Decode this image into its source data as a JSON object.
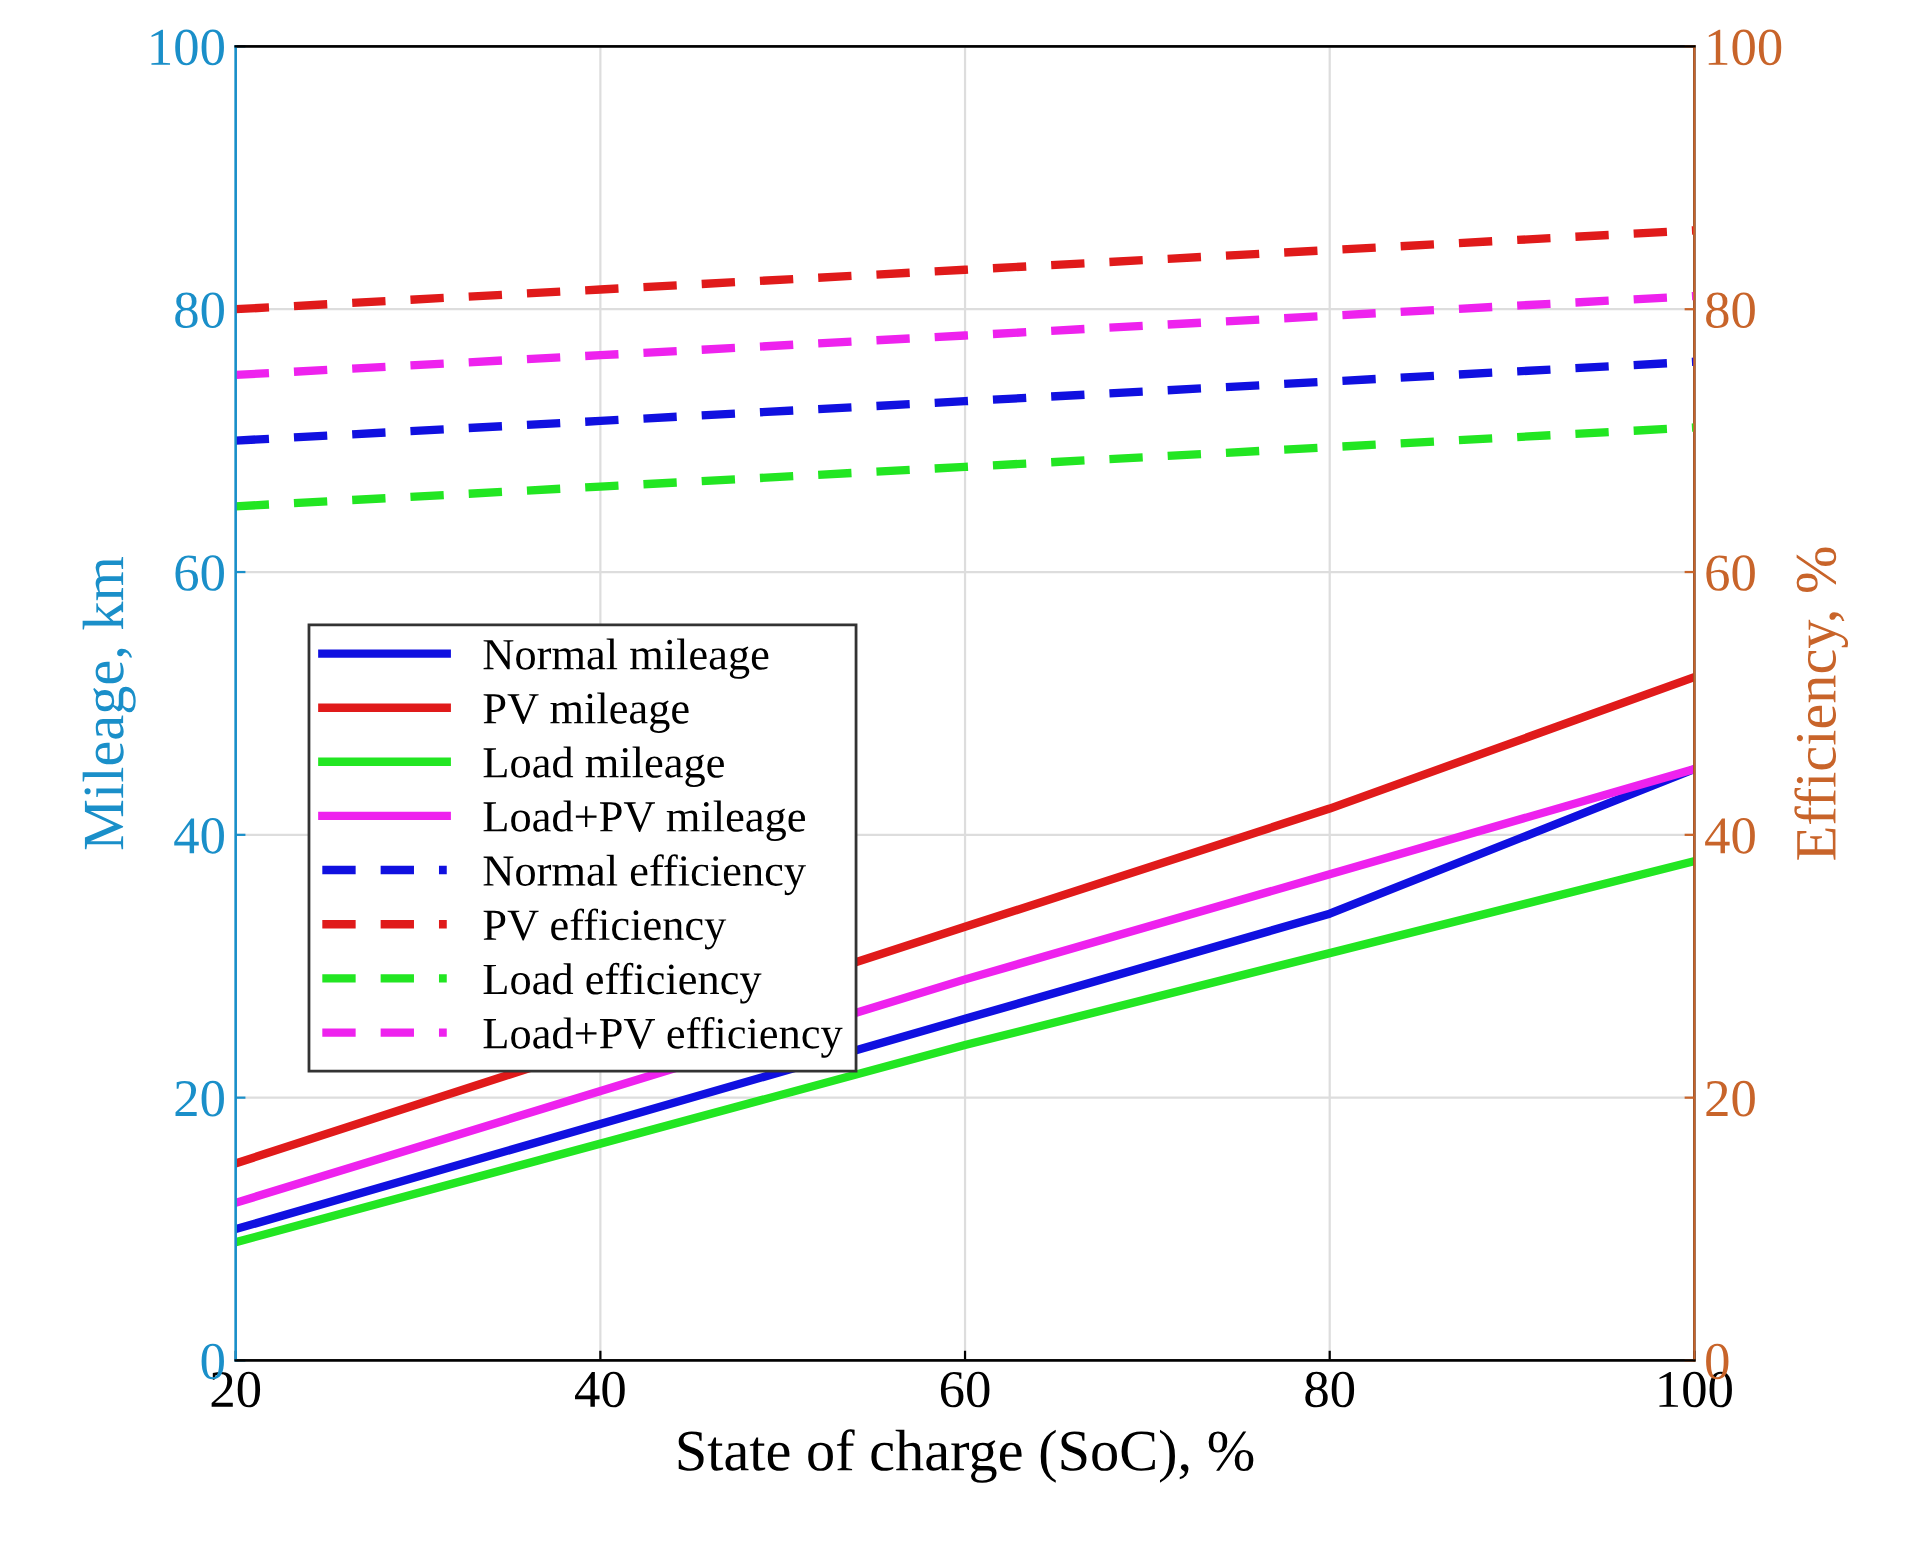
{
  "chart_data": {
    "type": "line",
    "xlabel": "State of charge (SoC), %",
    "ylabel": "Mileage, km",
    "y2label": "Efficiency, %",
    "x": [
      20,
      40,
      60,
      80,
      100
    ],
    "xlim": [
      20,
      100
    ],
    "xticks": [
      20,
      40,
      60,
      80,
      100
    ],
    "ylim": [
      0,
      100
    ],
    "yticks": [
      0,
      20,
      40,
      60,
      80,
      100
    ],
    "y2lim": [
      0,
      100
    ],
    "y2ticks": [
      0,
      20,
      40,
      60,
      80,
      100
    ],
    "grid": true,
    "legend": "left",
    "marker": "none",
    "series": [
      {
        "name": "Normal mileage",
        "color": "#1010e0",
        "x": [
          20,
          60,
          80,
          100
        ],
        "values": [
          10,
          26,
          34,
          45
        ],
        "line_style": "solid"
      },
      {
        "name": "PV mileage",
        "color": "#e01a1a",
        "x": [
          20,
          60,
          80,
          100
        ],
        "values": [
          15,
          33,
          42,
          52
        ],
        "line_style": "solid"
      },
      {
        "name": "Load mileage",
        "color": "#22e622",
        "x": [
          20,
          60,
          80,
          100
        ],
        "values": [
          9,
          24,
          31,
          38
        ],
        "line_style": "solid"
      },
      {
        "name": "Load+PV mileage",
        "color": "#ee22ee",
        "x": [
          20,
          60,
          80,
          100
        ],
        "values": [
          12,
          29,
          37,
          45
        ],
        "line_style": "solid"
      },
      {
        "name": "Normal efficiency",
        "color": "#1010e0",
        "values": [
          70,
          71.5,
          73,
          74.5,
          76
        ],
        "line_style": "dashed",
        "axis": "y2"
      },
      {
        "name": "PV efficiency",
        "color": "#e01a1a",
        "values": [
          80,
          81.5,
          83,
          84.5,
          86
        ],
        "line_style": "dashed",
        "axis": "y2"
      },
      {
        "name": "Load efficiency",
        "color": "#22e622",
        "values": [
          65,
          66.5,
          68,
          69.5,
          71
        ],
        "line_style": "dashed",
        "axis": "y2"
      },
      {
        "name": "Load+PV efficiency",
        "color": "#ee22ee",
        "values": [
          75,
          76.5,
          78,
          79.5,
          81
        ],
        "line_style": "dashed",
        "axis": "y2"
      }
    ]
  }
}
